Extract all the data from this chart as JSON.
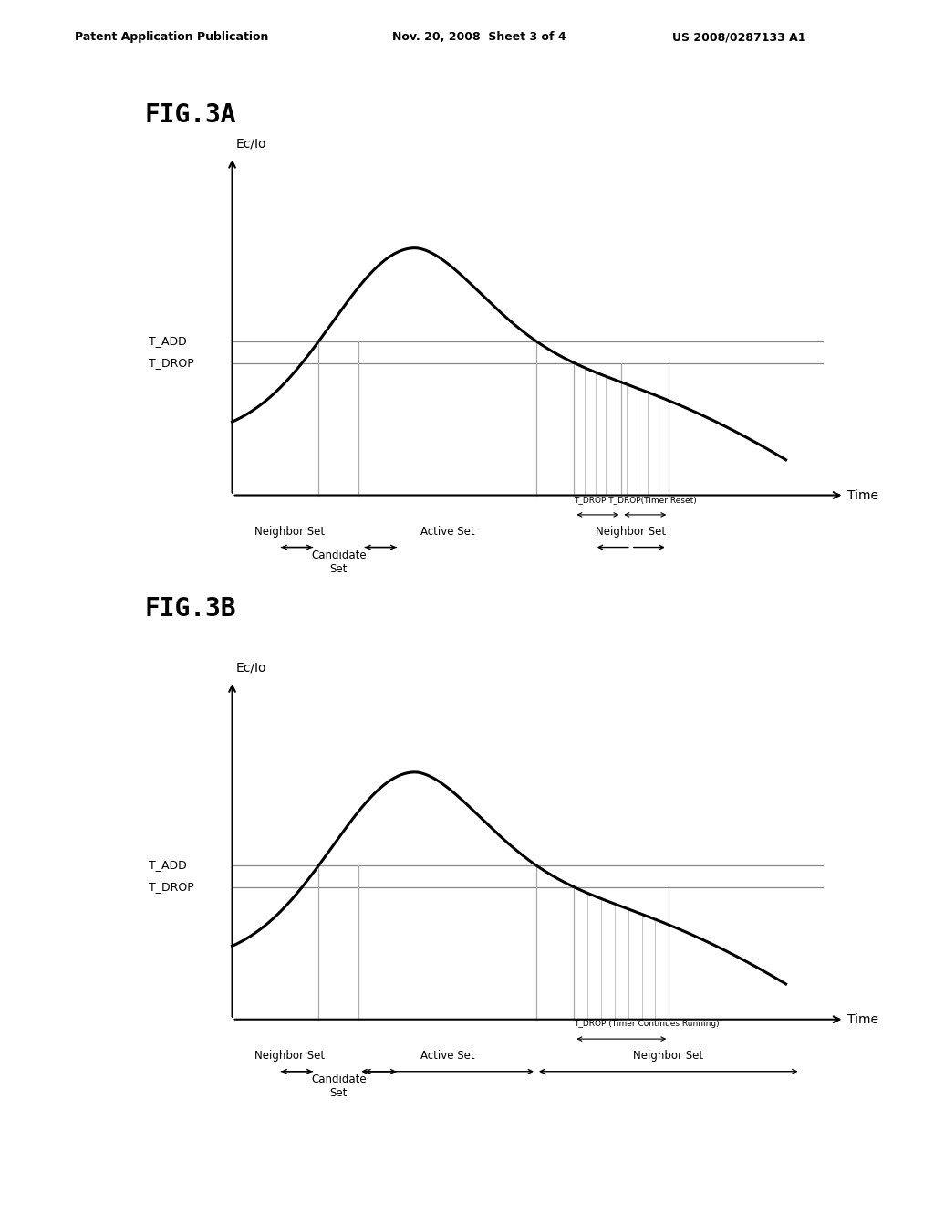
{
  "background_color": "#ffffff",
  "header_left": "Patent Application Publication",
  "header_mid": "Nov. 20, 2008  Sheet 3 of 4",
  "header_right": "US 2008/0287133 A1",
  "fig3a_label": "FIG.3A",
  "fig3b_label": "FIG.3B",
  "ylabel": "Ec/Io",
  "xlabel": "Time",
  "t_add_label": "T_ADD",
  "t_drop_label": "T_DROP",
  "neighbor_set_label": "Neighbor Set",
  "active_set_label": "Active Set",
  "candidate_set_label": "Candidate\nSet",
  "t_drop_annot_3a": "T_DROP T_DROP(Timer Reset)",
  "t_drop_annot_3b": "T_DROP (Timer Continues Running)"
}
